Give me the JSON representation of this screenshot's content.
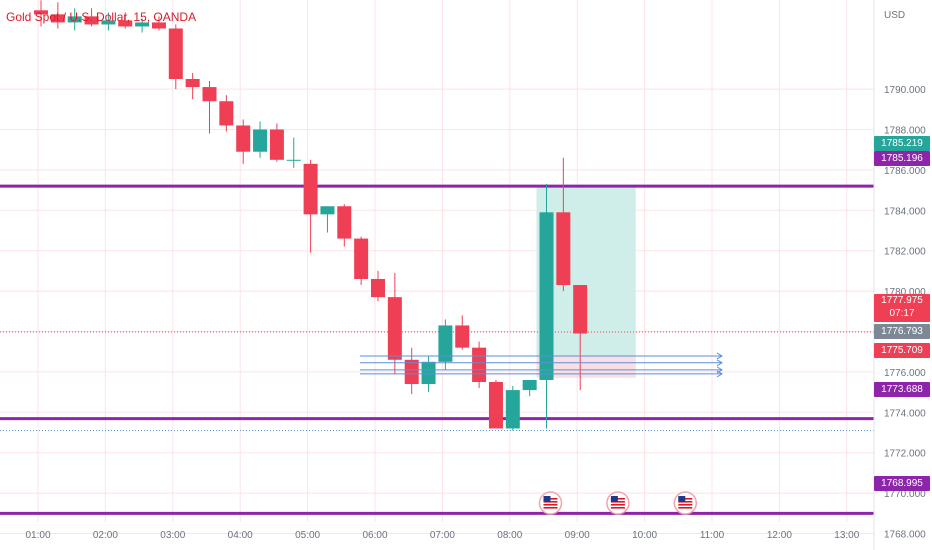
{
  "header": {
    "symbol_title": "Gold Spot / U.S. Dollar, 15, OANDA"
  },
  "axis": {
    "currency": "USD"
  },
  "colors": {
    "up": "#26a69a",
    "down": "#ef3f55",
    "level": "#8e24aa",
    "grid": "#fbe3e6",
    "target_zone": "#cfeee9",
    "stop_zone": "#f7dfe4",
    "projection": "#5b8fd8"
  },
  "price_tags": {
    "tag_1785_219": {
      "text": "1785.219",
      "color": "#26a69a"
    },
    "tag_1785_196": {
      "text": "1785.196",
      "color": "#8e24aa"
    },
    "tag_current": {
      "text": "1777.975",
      "countdown": "07:17",
      "color": "#ef3f55"
    },
    "tag_1776_793": {
      "text": "1776.793",
      "color": "#7e8796"
    },
    "tag_1775_709": {
      "text": "1775.709",
      "color": "#ef3f55"
    },
    "tag_1773_688": {
      "text": "1773.688",
      "color": "#8e24aa"
    },
    "tag_1768_995": {
      "text": "1768.995",
      "color": "#8e24aa"
    }
  },
  "event_icons": [
    "us-flag-icon",
    "us-flag-icon",
    "us-flag-icon"
  ],
  "chart_data": {
    "type": "candlestick",
    "title": "Gold Spot / U.S. Dollar, 15, OANDA",
    "ylabel": "USD",
    "ylim": [
      1767.5,
      1794.0
    ],
    "y_ticks": [
      1768.0,
      1770.0,
      1772.0,
      1774.0,
      1776.0,
      1778.0,
      1780.0,
      1782.0,
      1784.0,
      1786.0,
      1788.0,
      1790.0
    ],
    "x_ticks": [
      "01:00",
      "02:00",
      "03:00",
      "04:00",
      "05:00",
      "06:00",
      "07:00",
      "08:00",
      "09:00",
      "10:00",
      "11:00",
      "12:00",
      "13:00"
    ],
    "grid": true,
    "candles": [
      {
        "t": "01:00",
        "o": 1793.9,
        "h": 1794.4,
        "l": 1793.1,
        "c": 1793.7
      },
      {
        "t": "01:15",
        "o": 1793.7,
        "h": 1794.3,
        "l": 1793.0,
        "c": 1793.3
      },
      {
        "t": "01:30",
        "o": 1793.3,
        "h": 1794.0,
        "l": 1792.9,
        "c": 1793.6
      },
      {
        "t": "01:45",
        "o": 1793.6,
        "h": 1794.0,
        "l": 1793.1,
        "c": 1793.2
      },
      {
        "t": "02:00",
        "o": 1793.2,
        "h": 1793.8,
        "l": 1792.9,
        "c": 1793.4
      },
      {
        "t": "02:15",
        "o": 1793.4,
        "h": 1793.8,
        "l": 1793.0,
        "c": 1793.1
      },
      {
        "t": "02:30",
        "o": 1793.1,
        "h": 1793.5,
        "l": 1792.8,
        "c": 1793.3
      },
      {
        "t": "02:45",
        "o": 1793.3,
        "h": 1793.6,
        "l": 1792.9,
        "c": 1793.0
      },
      {
        "t": "03:00",
        "o": 1793.0,
        "h": 1793.2,
        "l": 1790.0,
        "c": 1790.5
      },
      {
        "t": "03:15",
        "o": 1790.5,
        "h": 1790.8,
        "l": 1789.5,
        "c": 1790.1
      },
      {
        "t": "03:30",
        "o": 1790.1,
        "h": 1790.4,
        "l": 1787.8,
        "c": 1789.4
      },
      {
        "t": "03:45",
        "o": 1789.4,
        "h": 1789.7,
        "l": 1787.9,
        "c": 1788.2
      },
      {
        "t": "04:00",
        "o": 1788.2,
        "h": 1788.5,
        "l": 1786.3,
        "c": 1786.9
      },
      {
        "t": "04:15",
        "o": 1786.9,
        "h": 1788.4,
        "l": 1786.6,
        "c": 1788.0
      },
      {
        "t": "04:30",
        "o": 1788.0,
        "h": 1788.3,
        "l": 1786.4,
        "c": 1786.5
      },
      {
        "t": "04:45",
        "o": 1786.5,
        "h": 1787.6,
        "l": 1786.1,
        "c": 1786.5
      },
      {
        "t": "05:00",
        "o": 1786.3,
        "h": 1786.5,
        "l": 1781.9,
        "c": 1783.8
      },
      {
        "t": "05:15",
        "o": 1783.8,
        "h": 1784.2,
        "l": 1782.9,
        "c": 1784.2
      },
      {
        "t": "05:30",
        "o": 1784.2,
        "h": 1784.3,
        "l": 1782.2,
        "c": 1782.6
      },
      {
        "t": "05:45",
        "o": 1782.6,
        "h": 1782.7,
        "l": 1780.3,
        "c": 1780.6
      },
      {
        "t": "06:00",
        "o": 1780.6,
        "h": 1781.0,
        "l": 1779.5,
        "c": 1779.7
      },
      {
        "t": "06:15",
        "o": 1779.7,
        "h": 1780.9,
        "l": 1775.9,
        "c": 1776.6
      },
      {
        "t": "06:30",
        "o": 1776.6,
        "h": 1777.2,
        "l": 1774.9,
        "c": 1775.4
      },
      {
        "t": "06:45",
        "o": 1775.4,
        "h": 1776.8,
        "l": 1775.0,
        "c": 1776.5
      },
      {
        "t": "07:00",
        "o": 1776.5,
        "h": 1778.6,
        "l": 1776.1,
        "c": 1778.3
      },
      {
        "t": "07:15",
        "o": 1778.3,
        "h": 1778.8,
        "l": 1777.1,
        "c": 1777.2
      },
      {
        "t": "07:30",
        "o": 1777.2,
        "h": 1777.5,
        "l": 1775.2,
        "c": 1775.5
      },
      {
        "t": "07:45",
        "o": 1775.5,
        "h": 1775.6,
        "l": 1773.2,
        "c": 1773.2
      },
      {
        "t": "08:00",
        "o": 1773.2,
        "h": 1775.3,
        "l": 1773.1,
        "c": 1775.1
      },
      {
        "t": "08:15",
        "o": 1775.1,
        "h": 1775.6,
        "l": 1774.8,
        "c": 1775.6
      },
      {
        "t": "08:30",
        "o": 1775.6,
        "h": 1785.3,
        "l": 1773.2,
        "c": 1783.9
      },
      {
        "t": "08:45",
        "o": 1783.9,
        "h": 1786.6,
        "l": 1780.0,
        "c": 1780.3
      },
      {
        "t": "09:00",
        "o": 1780.3,
        "h": 1780.3,
        "l": 1775.1,
        "c": 1777.9
      }
    ],
    "horizontal_levels": [
      1785.196,
      1773.688,
      1768.995
    ],
    "current_price": 1777.975,
    "position": {
      "entry": 1776.793,
      "target": 1785.196,
      "stop": 1775.709,
      "from": "08:30",
      "to": "09:45"
    },
    "projection_arrow_levels": [
      1776.79,
      1776.45,
      1776.1,
      1775.9
    ],
    "event_times": [
      "08:30",
      "09:30",
      "10:30"
    ]
  }
}
